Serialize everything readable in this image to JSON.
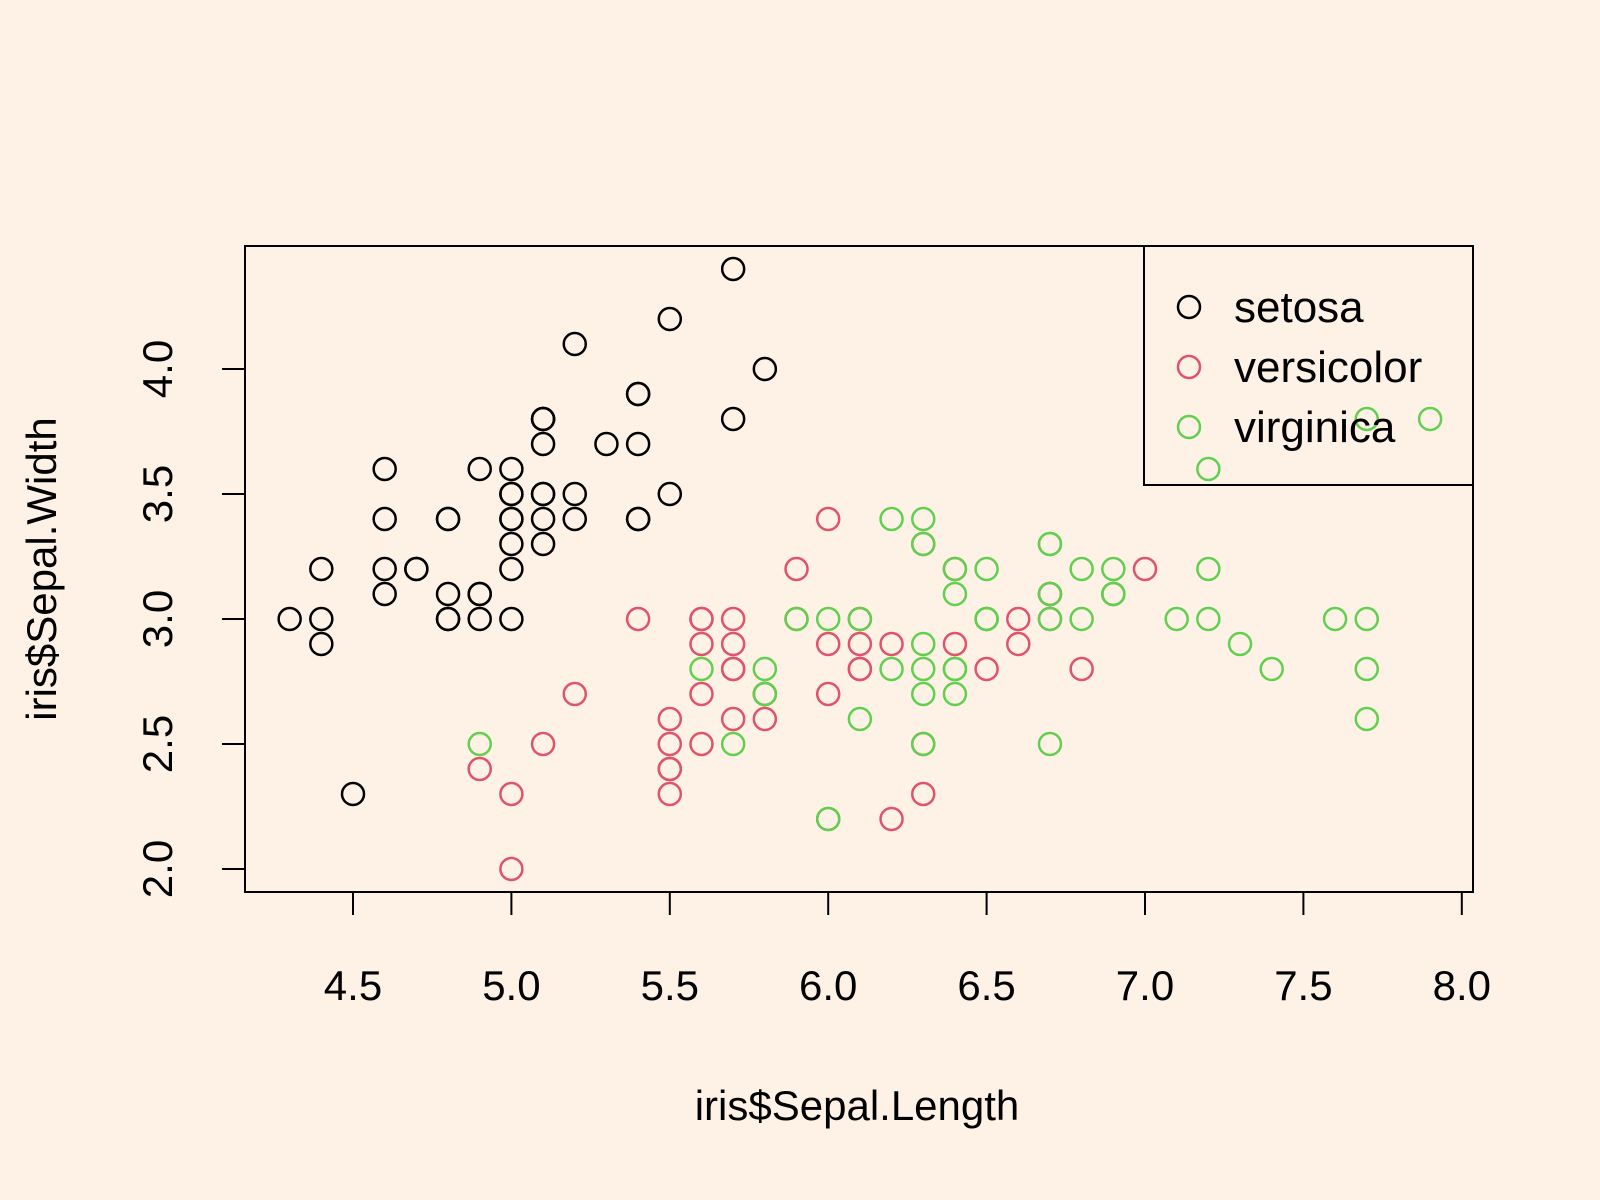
{
  "chart_data": {
    "type": "scatter",
    "title": "",
    "xlabel": "iris$Sepal.Length",
    "ylabel": "iris$Sepal.Width",
    "xlim": [
      4.3,
      8.0
    ],
    "ylim": [
      2.0,
      4.4
    ],
    "xticks": [
      "4.5",
      "5.0",
      "5.5",
      "6.0",
      "6.5",
      "7.0",
      "7.5",
      "8.0"
    ],
    "yticks": [
      "2.0",
      "2.5",
      "3.0",
      "3.5",
      "4.0"
    ],
    "grid": false,
    "legend_position": "top-right",
    "series": [
      {
        "name": "setosa",
        "color": "#000000",
        "points": [
          [
            5.1,
            3.5
          ],
          [
            4.9,
            3.0
          ],
          [
            4.7,
            3.2
          ],
          [
            4.6,
            3.1
          ],
          [
            5.0,
            3.6
          ],
          [
            5.4,
            3.9
          ],
          [
            4.6,
            3.4
          ],
          [
            5.0,
            3.4
          ],
          [
            4.4,
            2.9
          ],
          [
            4.9,
            3.1
          ],
          [
            5.4,
            3.7
          ],
          [
            4.8,
            3.4
          ],
          [
            4.8,
            3.0
          ],
          [
            4.3,
            3.0
          ],
          [
            5.8,
            4.0
          ],
          [
            5.7,
            4.4
          ],
          [
            5.4,
            3.9
          ],
          [
            5.1,
            3.5
          ],
          [
            5.7,
            3.8
          ],
          [
            5.1,
            3.8
          ],
          [
            5.4,
            3.4
          ],
          [
            5.1,
            3.7
          ],
          [
            4.6,
            3.6
          ],
          [
            5.1,
            3.3
          ],
          [
            4.8,
            3.4
          ],
          [
            5.0,
            3.0
          ],
          [
            5.0,
            3.4
          ],
          [
            5.2,
            3.5
          ],
          [
            5.2,
            3.4
          ],
          [
            4.7,
            3.2
          ],
          [
            4.8,
            3.1
          ],
          [
            5.4,
            3.4
          ],
          [
            5.2,
            4.1
          ],
          [
            5.5,
            4.2
          ],
          [
            4.9,
            3.1
          ],
          [
            5.0,
            3.2
          ],
          [
            5.5,
            3.5
          ],
          [
            4.9,
            3.6
          ],
          [
            4.4,
            3.0
          ],
          [
            5.1,
            3.4
          ],
          [
            5.0,
            3.5
          ],
          [
            4.5,
            2.3
          ],
          [
            4.4,
            3.2
          ],
          [
            5.0,
            3.5
          ],
          [
            5.1,
            3.8
          ],
          [
            4.8,
            3.0
          ],
          [
            5.1,
            3.8
          ],
          [
            4.6,
            3.2
          ],
          [
            5.3,
            3.7
          ],
          [
            5.0,
            3.3
          ]
        ]
      },
      {
        "name": "versicolor",
        "color": "#DF536B",
        "points": [
          [
            7.0,
            3.2
          ],
          [
            6.4,
            3.2
          ],
          [
            6.9,
            3.1
          ],
          [
            5.5,
            2.3
          ],
          [
            6.5,
            2.8
          ],
          [
            5.7,
            2.8
          ],
          [
            6.3,
            3.3
          ],
          [
            4.9,
            2.4
          ],
          [
            6.6,
            2.9
          ],
          [
            5.2,
            2.7
          ],
          [
            5.0,
            2.0
          ],
          [
            5.9,
            3.0
          ],
          [
            6.0,
            2.2
          ],
          [
            6.1,
            2.9
          ],
          [
            5.6,
            2.9
          ],
          [
            6.7,
            3.1
          ],
          [
            5.6,
            3.0
          ],
          [
            5.8,
            2.7
          ],
          [
            6.2,
            2.2
          ],
          [
            5.6,
            2.5
          ],
          [
            5.9,
            3.2
          ],
          [
            6.1,
            2.8
          ],
          [
            6.3,
            2.5
          ],
          [
            6.1,
            2.8
          ],
          [
            6.4,
            2.9
          ],
          [
            6.6,
            3.0
          ],
          [
            6.8,
            2.8
          ],
          [
            6.7,
            3.0
          ],
          [
            6.0,
            2.9
          ],
          [
            5.7,
            2.6
          ],
          [
            5.5,
            2.4
          ],
          [
            5.5,
            2.4
          ],
          [
            5.8,
            2.7
          ],
          [
            6.0,
            2.7
          ],
          [
            5.4,
            3.0
          ],
          [
            6.0,
            3.4
          ],
          [
            6.7,
            3.1
          ],
          [
            6.3,
            2.3
          ],
          [
            5.6,
            3.0
          ],
          [
            5.5,
            2.5
          ],
          [
            5.5,
            2.6
          ],
          [
            6.1,
            3.0
          ],
          [
            5.8,
            2.6
          ],
          [
            5.0,
            2.3
          ],
          [
            5.6,
            2.7
          ],
          [
            5.7,
            3.0
          ],
          [
            5.7,
            2.9
          ],
          [
            6.2,
            2.9
          ],
          [
            5.1,
            2.5
          ],
          [
            5.7,
            2.8
          ]
        ]
      },
      {
        "name": "virginica",
        "color": "#61D04F",
        "points": [
          [
            6.3,
            3.3
          ],
          [
            5.8,
            2.7
          ],
          [
            7.1,
            3.0
          ],
          [
            6.3,
            2.9
          ],
          [
            6.5,
            3.0
          ],
          [
            7.6,
            3.0
          ],
          [
            4.9,
            2.5
          ],
          [
            7.3,
            2.9
          ],
          [
            6.7,
            2.5
          ],
          [
            7.2,
            3.6
          ],
          [
            6.5,
            3.2
          ],
          [
            6.4,
            2.7
          ],
          [
            6.8,
            3.0
          ],
          [
            5.7,
            2.5
          ],
          [
            5.8,
            2.8
          ],
          [
            6.4,
            3.2
          ],
          [
            6.5,
            3.0
          ],
          [
            7.7,
            3.8
          ],
          [
            7.7,
            2.6
          ],
          [
            6.0,
            2.2
          ],
          [
            6.9,
            3.2
          ],
          [
            5.6,
            2.8
          ],
          [
            7.7,
            2.8
          ],
          [
            6.3,
            2.7
          ],
          [
            6.7,
            3.3
          ],
          [
            7.2,
            3.2
          ],
          [
            6.2,
            2.8
          ],
          [
            6.1,
            3.0
          ],
          [
            6.4,
            2.8
          ],
          [
            7.2,
            3.0
          ],
          [
            7.4,
            2.8
          ],
          [
            7.9,
            3.8
          ],
          [
            6.4,
            2.8
          ],
          [
            6.3,
            2.8
          ],
          [
            6.1,
            2.6
          ],
          [
            7.7,
            3.0
          ],
          [
            6.3,
            3.4
          ],
          [
            6.4,
            3.1
          ],
          [
            6.0,
            3.0
          ],
          [
            6.9,
            3.1
          ],
          [
            6.7,
            3.1
          ],
          [
            6.9,
            3.1
          ],
          [
            5.8,
            2.7
          ],
          [
            6.8,
            3.2
          ],
          [
            6.7,
            3.3
          ],
          [
            6.7,
            3.0
          ],
          [
            6.3,
            2.5
          ],
          [
            6.5,
            3.0
          ],
          [
            6.2,
            3.4
          ],
          [
            5.9,
            3.0
          ]
        ]
      }
    ]
  }
}
